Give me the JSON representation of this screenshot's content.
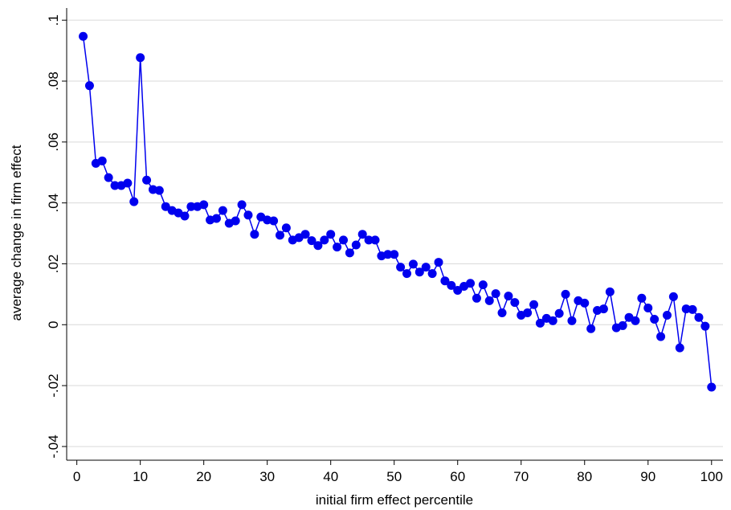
{
  "chart_data": {
    "type": "line",
    "x_label": "initial firm effect percentile",
    "y_label": "average change in firm effect",
    "x": [
      1,
      2,
      3,
      4,
      5,
      6,
      7,
      8,
      9,
      10,
      11,
      12,
      13,
      14,
      15,
      16,
      17,
      18,
      19,
      20,
      21,
      22,
      23,
      24,
      25,
      26,
      27,
      28,
      29,
      30,
      31,
      32,
      33,
      34,
      35,
      36,
      37,
      38,
      39,
      40,
      41,
      42,
      43,
      44,
      45,
      46,
      47,
      48,
      49,
      50,
      51,
      52,
      53,
      54,
      55,
      56,
      57,
      58,
      59,
      60,
      61,
      62,
      63,
      64,
      65,
      66,
      67,
      68,
      69,
      70,
      71,
      72,
      73,
      74,
      75,
      76,
      77,
      78,
      79,
      80,
      81,
      82,
      83,
      84,
      85,
      86,
      87,
      88,
      89,
      90,
      91,
      92,
      93,
      94,
      95,
      96,
      97,
      98,
      99,
      100
    ],
    "series": [
      {
        "color": "#0000ee",
        "values": [
          0.0947,
          0.0785,
          0.053,
          0.0538,
          0.0483,
          0.0457,
          0.0457,
          0.0465,
          0.0404,
          0.0877,
          0.0475,
          0.0444,
          0.0441,
          0.0388,
          0.0375,
          0.0367,
          0.0357,
          0.0388,
          0.0388,
          0.0394,
          0.0344,
          0.0349,
          0.0375,
          0.0333,
          0.0341,
          0.0394,
          0.036,
          0.0297,
          0.0354,
          0.0344,
          0.0341,
          0.0294,
          0.0318,
          0.0278,
          0.0286,
          0.0297,
          0.0276,
          0.026,
          0.0278,
          0.0297,
          0.0255,
          0.0278,
          0.0236,
          0.0262,
          0.0297,
          0.0278,
          0.0278,
          0.0226,
          0.0231,
          0.0231,
          0.0189,
          0.0168,
          0.0199,
          0.0173,
          0.0189,
          0.0168,
          0.0205,
          0.0144,
          0.0129,
          0.0113,
          0.0126,
          0.0136,
          0.0087,
          0.0131,
          0.0079,
          0.0102,
          0.0039,
          0.0094,
          0.0073,
          0.0031,
          0.0039,
          0.0066,
          0.0005,
          0.0021,
          0.0013,
          0.0037,
          0.01,
          0.0013,
          0.0079,
          0.0071,
          -0.0013,
          0.0047,
          0.0052,
          0.0108,
          -0.001,
          -0.0003,
          0.0024,
          0.0013,
          0.0087,
          0.0055,
          0.0018,
          -0.0039,
          0.0031,
          0.0092,
          -0.0076,
          0.0052,
          0.005,
          0.0024,
          -0.0005,
          -0.0205
        ]
      }
    ],
    "xlim": [
      -1.6,
      101.8
    ],
    "xticks": [
      0,
      10,
      20,
      30,
      40,
      50,
      60,
      70,
      80,
      90,
      100
    ],
    "ylim": [
      -0.0445,
      0.104
    ],
    "yticks": [
      {
        "value": -0.04,
        "label": "-.04"
      },
      {
        "value": -0.02,
        "label": "-.02"
      },
      0,
      {
        "value": 0.02,
        "label": ".02"
      },
      {
        "value": 0.04,
        "label": ".04"
      },
      {
        "value": 0.06,
        "label": ".06"
      },
      {
        "value": 0.08,
        "label": ".08"
      },
      {
        "value": 0.1,
        "label": ".1"
      }
    ],
    "grid": true
  }
}
